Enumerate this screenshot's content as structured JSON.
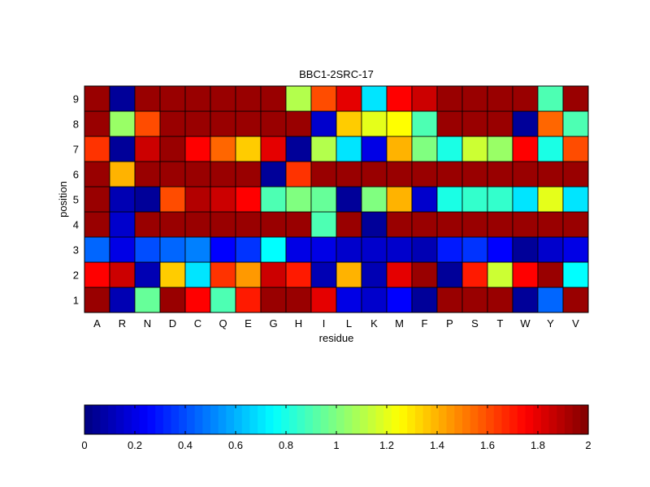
{
  "chart_data": {
    "type": "heatmap",
    "title": "BBC1-2SRC-17",
    "xlabel": "residue",
    "ylabel": "position",
    "x_categories": [
      "A",
      "R",
      "N",
      "D",
      "C",
      "Q",
      "E",
      "G",
      "H",
      "I",
      "L",
      "K",
      "M",
      "F",
      "P",
      "S",
      "T",
      "W",
      "Y",
      "V"
    ],
    "y_categories": [
      "1",
      "2",
      "3",
      "4",
      "5",
      "6",
      "7",
      "8",
      "9"
    ],
    "values": [
      [
        1.95,
        0.1,
        0.95,
        1.95,
        1.75,
        0.9,
        1.7,
        1.95,
        1.95,
        1.8,
        0.2,
        0.15,
        0.25,
        0.05,
        1.95,
        1.95,
        1.95,
        0.05,
        0.45,
        1.95
      ],
      [
        1.75,
        1.85,
        0.1,
        1.35,
        0.7,
        1.65,
        1.45,
        1.85,
        1.7,
        0.1,
        1.4,
        0.1,
        1.8,
        1.95,
        0.05,
        1.7,
        1.15,
        1.75,
        1.95,
        0.75
      ],
      [
        0.45,
        0.2,
        0.4,
        0.45,
        0.5,
        0.25,
        0.35,
        0.75,
        0.2,
        0.2,
        0.15,
        0.15,
        0.15,
        0.1,
        0.3,
        0.35,
        0.25,
        0.05,
        0.15,
        0.2
      ],
      [
        1.95,
        0.15,
        1.95,
        1.95,
        1.95,
        1.95,
        1.95,
        1.95,
        1.95,
        0.9,
        1.95,
        0.05,
        1.95,
        1.95,
        1.95,
        1.95,
        1.95,
        1.95,
        1.95,
        1.95
      ],
      [
        1.95,
        0.1,
        0.05,
        1.6,
        1.9,
        1.85,
        1.75,
        0.9,
        1.0,
        0.95,
        0.05,
        1.0,
        1.4,
        0.15,
        0.8,
        0.85,
        0.85,
        0.7,
        1.2,
        0.7
      ],
      [
        1.95,
        1.4,
        1.95,
        1.95,
        1.95,
        1.95,
        1.95,
        0.05,
        1.65,
        1.95,
        1.95,
        1.95,
        1.95,
        1.95,
        1.95,
        1.95,
        1.95,
        1.95,
        1.95,
        1.95
      ],
      [
        1.65,
        0.05,
        1.85,
        1.95,
        1.75,
        1.55,
        1.35,
        1.8,
        0.05,
        1.1,
        0.7,
        0.2,
        1.4,
        1.0,
        0.8,
        1.15,
        1.05,
        1.75,
        0.8,
        1.6
      ],
      [
        1.95,
        1.05,
        1.6,
        1.95,
        1.95,
        1.95,
        1.95,
        1.95,
        1.95,
        0.15,
        1.35,
        1.2,
        1.25,
        0.9,
        1.95,
        1.95,
        1.95,
        0.05,
        1.55,
        0.9
      ],
      [
        1.95,
        0.05,
        1.95,
        1.95,
        1.95,
        1.95,
        1.95,
        1.95,
        1.1,
        1.6,
        1.8,
        0.7,
        1.75,
        1.85,
        1.95,
        1.95,
        1.95,
        1.95,
        0.9,
        1.95
      ]
    ],
    "colormap": "jet",
    "clim": [
      0,
      2
    ],
    "colorbar": {
      "ticks": [
        "0",
        "0.2",
        "0.4",
        "0.6",
        "0.8",
        "1",
        "1.2",
        "1.4",
        "1.6",
        "1.8",
        "2"
      ],
      "orientation": "horizontal",
      "levels": 64
    }
  }
}
